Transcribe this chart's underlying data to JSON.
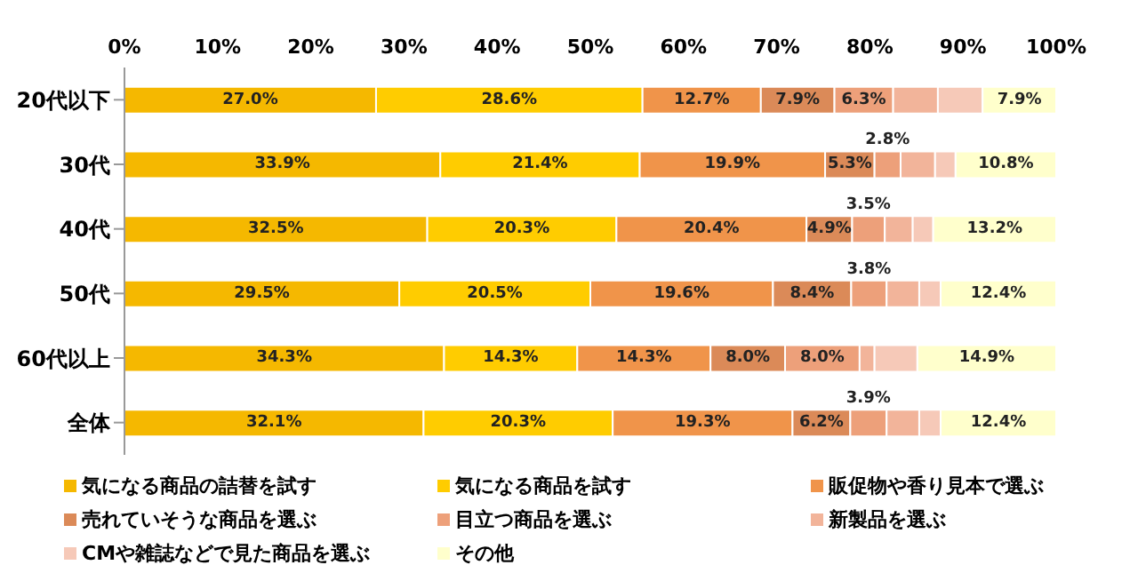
{
  "chart_data": {
    "type": "bar",
    "orientation": "horizontal",
    "stacked": true,
    "categories": [
      "20代以下",
      "30代",
      "40代",
      "50代",
      "60代以上",
      "全体"
    ],
    "xlim": [
      0,
      100
    ],
    "xticks": [
      {
        "value": 0,
        "label": "0%"
      },
      {
        "value": 10,
        "label": "10%"
      },
      {
        "value": 20,
        "label": "20%"
      },
      {
        "value": 30,
        "label": "30%"
      },
      {
        "value": 40,
        "label": "40%"
      },
      {
        "value": 50,
        "label": "50%"
      },
      {
        "value": 60,
        "label": "60%"
      },
      {
        "value": 70,
        "label": "70%"
      },
      {
        "value": 80,
        "label": "80%"
      },
      {
        "value": 90,
        "label": "90%"
      },
      {
        "value": 100,
        "label": "100%"
      }
    ],
    "grid": false,
    "legend": "bottom",
    "series": [
      {
        "name": "気になる商品の詰替を試す",
        "color": "#f5b800",
        "values": [
          27.0,
          33.9,
          32.5,
          29.5,
          34.3,
          32.1
        ],
        "value_labels": [
          "27.0%",
          "33.9%",
          "32.5%",
          "29.5%",
          "34.3%",
          "32.1%"
        ]
      },
      {
        "name": "気になる商品を試す",
        "color": "#ffcc00",
        "values": [
          28.6,
          21.4,
          20.3,
          20.5,
          14.3,
          20.3
        ],
        "value_labels": [
          "28.6%",
          "21.4%",
          "20.3%",
          "20.5%",
          "14.3%",
          "20.3%"
        ]
      },
      {
        "name": "販促物や香り見本で選ぶ",
        "color": "#f0944a",
        "values": [
          12.7,
          19.9,
          20.4,
          19.6,
          14.3,
          19.3
        ],
        "value_labels": [
          "12.7%",
          "19.9%",
          "20.4%",
          "19.6%",
          "14.3%",
          "19.3%"
        ]
      },
      {
        "name": "売れていそうな商品を選ぶ",
        "color": "#db8a58",
        "values": [
          7.9,
          5.3,
          4.9,
          8.4,
          8.0,
          6.2
        ],
        "value_labels": [
          "7.9%",
          "5.3%",
          "4.9%",
          "8.4%",
          "8.0%",
          "6.2%"
        ]
      },
      {
        "name": "目立つ商品を選ぶ",
        "color": "#eda07a",
        "values": [
          6.3,
          2.8,
          3.5,
          3.8,
          8.0,
          3.9
        ],
        "value_labels": [
          "6.3%",
          "2.8%",
          "3.5%",
          "3.8%",
          "8.0%",
          "3.9%"
        ]
      },
      {
        "name": "新製品を選ぶ",
        "color": "#f2b49a",
        "values": [
          4.8,
          3.7,
          3.0,
          3.5,
          1.6,
          3.5
        ],
        "value_labels": [
          null,
          null,
          null,
          null,
          null,
          null
        ]
      },
      {
        "name": "CMや雑誌などで見た商品を選ぶ",
        "color": "#f6c9b8",
        "values": [
          4.8,
          2.2,
          2.2,
          2.3,
          4.6,
          2.3
        ],
        "value_labels": [
          null,
          null,
          null,
          null,
          null,
          null
        ]
      },
      {
        "name": "その他",
        "color": "#ffffcc",
        "values": [
          7.9,
          10.8,
          13.2,
          12.4,
          14.9,
          12.4
        ],
        "value_labels": [
          "7.9%",
          "10.8%",
          "13.2%",
          "12.4%",
          "14.9%",
          "12.4%"
        ]
      }
    ]
  }
}
